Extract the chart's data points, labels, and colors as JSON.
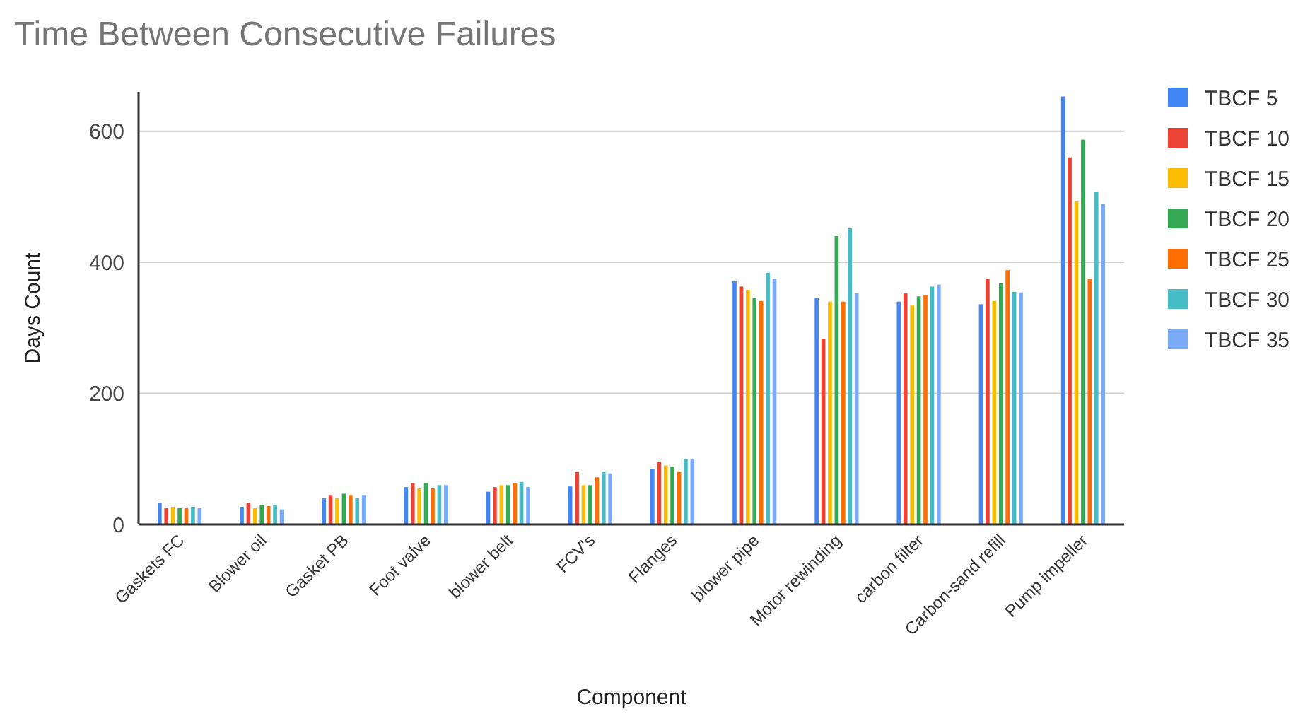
{
  "chart_data": {
    "type": "bar",
    "title": "Time Between Consecutive Failures",
    "xlabel": "Component",
    "ylabel": "Days Count",
    "categories": [
      "Gaskets FC",
      "Blower oil",
      "Gasket PB",
      "Foot valve",
      "blower belt",
      "FCV's",
      "Flanges",
      "blower pipe",
      "Motor rewinding",
      "carbon filter",
      "Carbon-sand refill",
      "Pump impeller"
    ],
    "series": [
      {
        "name": "TBCF 5",
        "color": "#4285f4",
        "values": [
          33,
          27,
          40,
          57,
          50,
          58,
          85,
          371,
          345,
          340,
          336,
          653
        ]
      },
      {
        "name": "TBCF 10",
        "color": "#ea4335",
        "values": [
          25,
          33,
          45,
          63,
          57,
          80,
          95,
          363,
          283,
          353,
          375,
          560
        ]
      },
      {
        "name": "TBCF 15",
        "color": "#fbbc04",
        "values": [
          27,
          25,
          40,
          55,
          60,
          60,
          90,
          358,
          340,
          334,
          341,
          493
        ]
      },
      {
        "name": "TBCF 20",
        "color": "#34a853",
        "values": [
          25,
          30,
          47,
          63,
          60,
          60,
          88,
          346,
          440,
          348,
          368,
          587
        ]
      },
      {
        "name": "TBCF 25",
        "color": "#ff6d01",
        "values": [
          25,
          28,
          45,
          55,
          63,
          72,
          80,
          341,
          340,
          350,
          388,
          375
        ]
      },
      {
        "name": "TBCF 30",
        "color": "#46bdc6",
        "values": [
          27,
          30,
          40,
          60,
          65,
          80,
          100,
          384,
          452,
          363,
          355,
          507
        ]
      },
      {
        "name": "TBCF 35",
        "color": "#7baaf7",
        "values": [
          25,
          23,
          45,
          60,
          57,
          78,
          100,
          375,
          353,
          366,
          354,
          489
        ]
      }
    ],
    "ylim": [
      0,
      660
    ],
    "yticks": [
      0,
      200,
      400,
      600
    ],
    "grid": "y",
    "legend": "right"
  }
}
